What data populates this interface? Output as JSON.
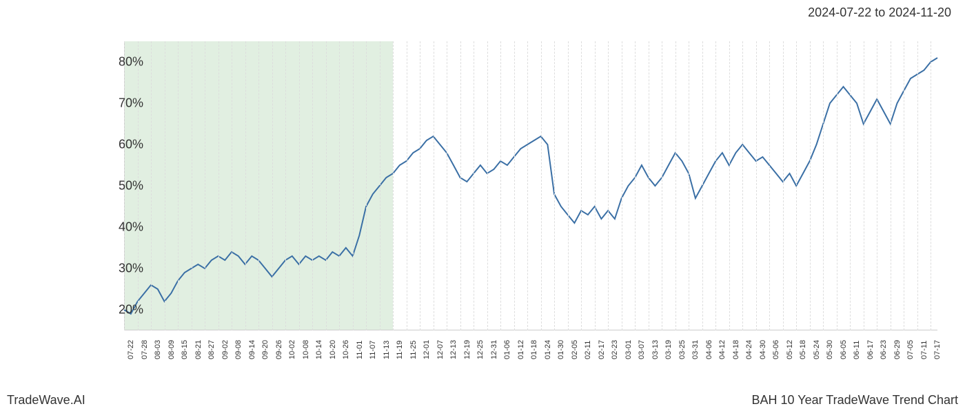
{
  "header": {
    "date_range": "2024-07-22 to 2024-11-20"
  },
  "footer": {
    "brand": "TradeWave.AI",
    "title": "BAH 10 Year TradeWave Trend Chart"
  },
  "chart": {
    "type": "line",
    "background_color": "#ffffff",
    "grid_color": "#dddddd",
    "axis_color": "#cccccc",
    "line_color": "#3a6fa5",
    "line_width": 2,
    "highlight_color": "#d4e8d4",
    "highlight_opacity": 0.7,
    "label_fontsize": 18,
    "x_label_fontsize": 11,
    "ylim": [
      15,
      85
    ],
    "y_ticks": [
      {
        "value": 20,
        "label": "20%"
      },
      {
        "value": 30,
        "label": "30%"
      },
      {
        "value": 40,
        "label": "40%"
      },
      {
        "value": 50,
        "label": "50%"
      },
      {
        "value": 60,
        "label": "60%"
      },
      {
        "value": 70,
        "label": "70%"
      },
      {
        "value": 80,
        "label": "80%"
      }
    ],
    "x_labels": [
      "07-22",
      "07-28",
      "08-03",
      "08-09",
      "08-15",
      "08-21",
      "08-27",
      "09-02",
      "09-08",
      "09-14",
      "09-20",
      "09-26",
      "10-02",
      "10-08",
      "10-14",
      "10-20",
      "10-26",
      "11-01",
      "11-07",
      "11-13",
      "11-19",
      "11-25",
      "12-01",
      "12-07",
      "12-13",
      "12-19",
      "12-25",
      "12-31",
      "01-06",
      "01-12",
      "01-18",
      "01-24",
      "01-30",
      "02-05",
      "02-11",
      "02-17",
      "02-23",
      "03-01",
      "03-07",
      "03-13",
      "03-19",
      "03-25",
      "03-31",
      "04-06",
      "04-12",
      "04-18",
      "04-24",
      "04-30",
      "05-06",
      "05-12",
      "05-18",
      "05-24",
      "05-30",
      "06-05",
      "06-11",
      "06-17",
      "06-23",
      "06-29",
      "07-05",
      "07-11",
      "07-17"
    ],
    "highlight_range": {
      "start_index": 0,
      "end_index": 20
    },
    "series": [
      {
        "x": 0,
        "y": 20
      },
      {
        "x": 0.5,
        "y": 19
      },
      {
        "x": 1,
        "y": 22
      },
      {
        "x": 1.5,
        "y": 24
      },
      {
        "x": 2,
        "y": 26
      },
      {
        "x": 2.5,
        "y": 25
      },
      {
        "x": 3,
        "y": 22
      },
      {
        "x": 3.5,
        "y": 24
      },
      {
        "x": 4,
        "y": 27
      },
      {
        "x": 4.5,
        "y": 29
      },
      {
        "x": 5,
        "y": 30
      },
      {
        "x": 5.5,
        "y": 31
      },
      {
        "x": 6,
        "y": 30
      },
      {
        "x": 6.5,
        "y": 32
      },
      {
        "x": 7,
        "y": 33
      },
      {
        "x": 7.5,
        "y": 32
      },
      {
        "x": 8,
        "y": 34
      },
      {
        "x": 8.5,
        "y": 33
      },
      {
        "x": 9,
        "y": 31
      },
      {
        "x": 9.5,
        "y": 33
      },
      {
        "x": 10,
        "y": 32
      },
      {
        "x": 10.5,
        "y": 30
      },
      {
        "x": 11,
        "y": 28
      },
      {
        "x": 11.5,
        "y": 30
      },
      {
        "x": 12,
        "y": 32
      },
      {
        "x": 12.5,
        "y": 33
      },
      {
        "x": 13,
        "y": 31
      },
      {
        "x": 13.5,
        "y": 33
      },
      {
        "x": 14,
        "y": 32
      },
      {
        "x": 14.5,
        "y": 33
      },
      {
        "x": 15,
        "y": 32
      },
      {
        "x": 15.5,
        "y": 34
      },
      {
        "x": 16,
        "y": 33
      },
      {
        "x": 16.5,
        "y": 35
      },
      {
        "x": 17,
        "y": 33
      },
      {
        "x": 17.5,
        "y": 38
      },
      {
        "x": 18,
        "y": 45
      },
      {
        "x": 18.5,
        "y": 48
      },
      {
        "x": 19,
        "y": 50
      },
      {
        "x": 19.5,
        "y": 52
      },
      {
        "x": 20,
        "y": 53
      },
      {
        "x": 20.5,
        "y": 55
      },
      {
        "x": 21,
        "y": 56
      },
      {
        "x": 21.5,
        "y": 58
      },
      {
        "x": 22,
        "y": 59
      },
      {
        "x": 22.5,
        "y": 61
      },
      {
        "x": 23,
        "y": 62
      },
      {
        "x": 23.5,
        "y": 60
      },
      {
        "x": 24,
        "y": 58
      },
      {
        "x": 24.5,
        "y": 55
      },
      {
        "x": 25,
        "y": 52
      },
      {
        "x": 25.5,
        "y": 51
      },
      {
        "x": 26,
        "y": 53
      },
      {
        "x": 26.5,
        "y": 55
      },
      {
        "x": 27,
        "y": 53
      },
      {
        "x": 27.5,
        "y": 54
      },
      {
        "x": 28,
        "y": 56
      },
      {
        "x": 28.5,
        "y": 55
      },
      {
        "x": 29,
        "y": 57
      },
      {
        "x": 29.5,
        "y": 59
      },
      {
        "x": 30,
        "y": 60
      },
      {
        "x": 30.5,
        "y": 61
      },
      {
        "x": 31,
        "y": 62
      },
      {
        "x": 31.5,
        "y": 60
      },
      {
        "x": 32,
        "y": 48
      },
      {
        "x": 32.5,
        "y": 45
      },
      {
        "x": 33,
        "y": 43
      },
      {
        "x": 33.5,
        "y": 41
      },
      {
        "x": 34,
        "y": 44
      },
      {
        "x": 34.5,
        "y": 43
      },
      {
        "x": 35,
        "y": 45
      },
      {
        "x": 35.5,
        "y": 42
      },
      {
        "x": 36,
        "y": 44
      },
      {
        "x": 36.5,
        "y": 42
      },
      {
        "x": 37,
        "y": 47
      },
      {
        "x": 37.5,
        "y": 50
      },
      {
        "x": 38,
        "y": 52
      },
      {
        "x": 38.5,
        "y": 55
      },
      {
        "x": 39,
        "y": 52
      },
      {
        "x": 39.5,
        "y": 50
      },
      {
        "x": 40,
        "y": 52
      },
      {
        "x": 40.5,
        "y": 55
      },
      {
        "x": 41,
        "y": 58
      },
      {
        "x": 41.5,
        "y": 56
      },
      {
        "x": 42,
        "y": 53
      },
      {
        "x": 42.5,
        "y": 47
      },
      {
        "x": 43,
        "y": 50
      },
      {
        "x": 43.5,
        "y": 53
      },
      {
        "x": 44,
        "y": 56
      },
      {
        "x": 44.5,
        "y": 58
      },
      {
        "x": 45,
        "y": 55
      },
      {
        "x": 45.5,
        "y": 58
      },
      {
        "x": 46,
        "y": 60
      },
      {
        "x": 46.5,
        "y": 58
      },
      {
        "x": 47,
        "y": 56
      },
      {
        "x": 47.5,
        "y": 57
      },
      {
        "x": 48,
        "y": 55
      },
      {
        "x": 48.5,
        "y": 53
      },
      {
        "x": 49,
        "y": 51
      },
      {
        "x": 49.5,
        "y": 53
      },
      {
        "x": 50,
        "y": 50
      },
      {
        "x": 50.5,
        "y": 53
      },
      {
        "x": 51,
        "y": 56
      },
      {
        "x": 51.5,
        "y": 60
      },
      {
        "x": 52,
        "y": 65
      },
      {
        "x": 52.5,
        "y": 70
      },
      {
        "x": 53,
        "y": 72
      },
      {
        "x": 53.5,
        "y": 74
      },
      {
        "x": 54,
        "y": 72
      },
      {
        "x": 54.5,
        "y": 70
      },
      {
        "x": 55,
        "y": 65
      },
      {
        "x": 55.5,
        "y": 68
      },
      {
        "x": 56,
        "y": 71
      },
      {
        "x": 56.5,
        "y": 68
      },
      {
        "x": 57,
        "y": 65
      },
      {
        "x": 57.5,
        "y": 70
      },
      {
        "x": 58,
        "y": 73
      },
      {
        "x": 58.5,
        "y": 76
      },
      {
        "x": 59,
        "y": 77
      },
      {
        "x": 59.5,
        "y": 78
      },
      {
        "x": 60,
        "y": 80
      },
      {
        "x": 60.5,
        "y": 81
      }
    ]
  }
}
